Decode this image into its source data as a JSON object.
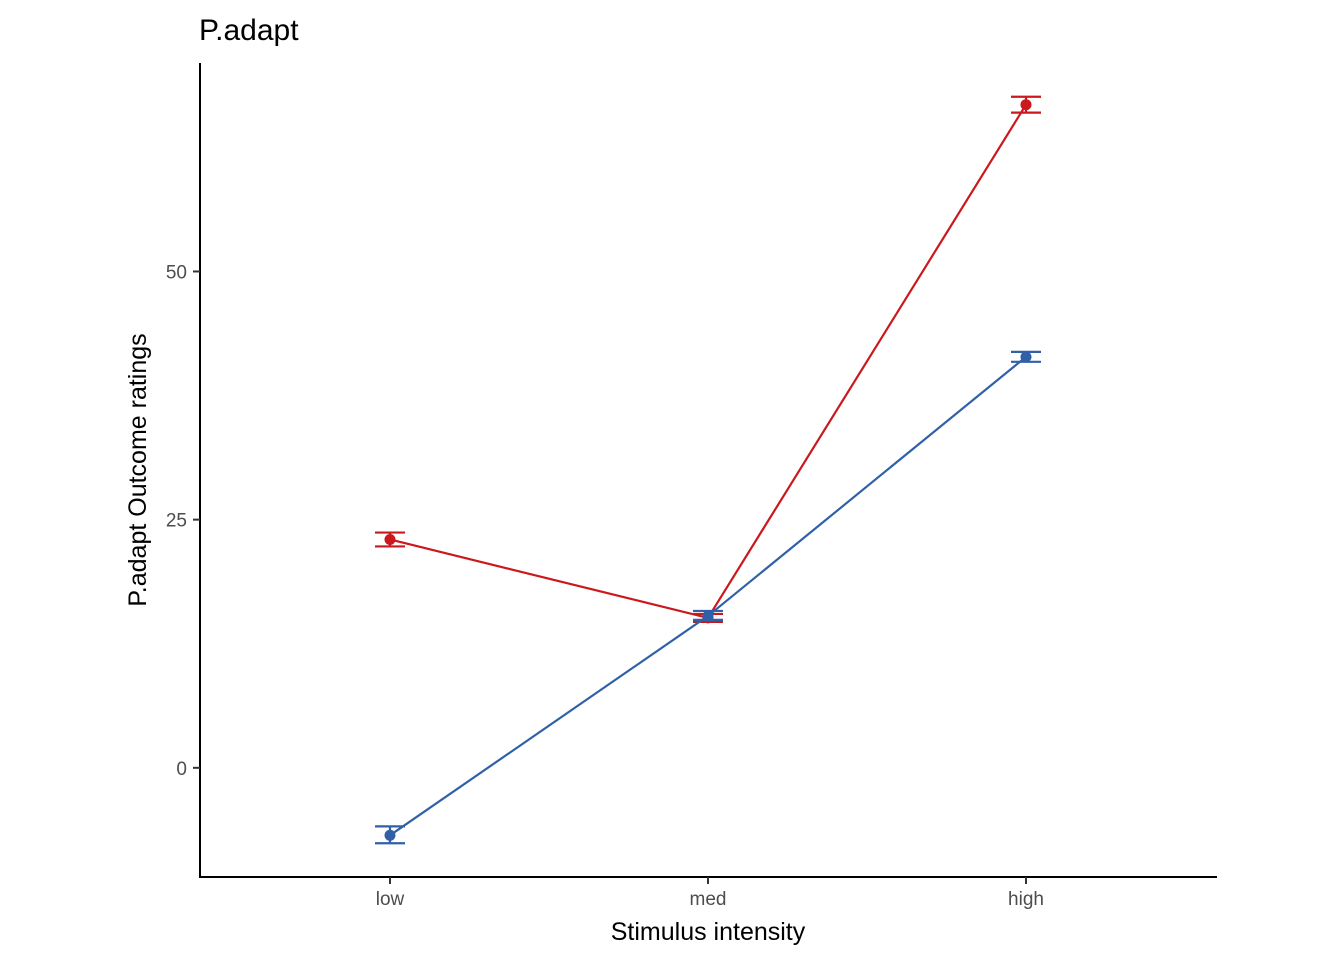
{
  "chart_data": {
    "type": "line",
    "title": "P.adapt",
    "xlabel": "Stimulus intensity",
    "ylabel": "P.adapt Outcome ratings",
    "categories": [
      "low",
      "med",
      "high"
    ],
    "yticks": [
      0,
      25,
      50
    ],
    "ylim": [
      -11,
      71
    ],
    "grid": false,
    "legend": "none",
    "series": [
      {
        "color": "#cb181d",
        "values": [
          23.0,
          15.1,
          66.8
        ],
        "error_low": [
          22.3,
          14.7,
          66.0
        ],
        "error_high": [
          23.7,
          15.5,
          67.6
        ]
      },
      {
        "color": "#3060a8",
        "values": [
          -6.8,
          15.3,
          41.4
        ],
        "error_low": [
          -7.6,
          14.9,
          40.9
        ],
        "error_high": [
          -5.9,
          15.8,
          41.9
        ]
      }
    ]
  }
}
